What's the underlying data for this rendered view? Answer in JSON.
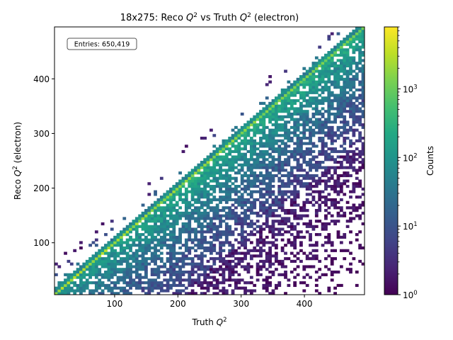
{
  "chart_data": {
    "type": "heatmap",
    "title_prefix": "18x275: Reco ",
    "title_q": "Q",
    "title_mid": " vs Truth ",
    "title_suffix": " (electron)",
    "title_sup": "2",
    "xlabel_prefix": "Truth ",
    "xlabel_q": "Q",
    "xlabel_sup": "2",
    "ylabel_prefix": "Reco ",
    "ylabel_q": "Q",
    "ylabel_sup": "2",
    "ylabel_suffix": " (electron)",
    "xlim": [
      5,
      495
    ],
    "ylim": [
      5,
      495
    ],
    "xticks": [
      100,
      200,
      300,
      400
    ],
    "yticks": [
      100,
      200,
      300,
      400
    ],
    "bins": 100,
    "entries_label": "Entries: 650,419",
    "colorbar": {
      "label": "Counts",
      "scale": "log",
      "range": [
        1,
        8000
      ],
      "ticks": [
        {
          "value": 1,
          "base": "10",
          "exp": "0"
        },
        {
          "value": 10,
          "base": "10",
          "exp": "1"
        },
        {
          "value": 100,
          "base": "10",
          "exp": "2"
        },
        {
          "value": 1000,
          "base": "10",
          "exp": "3"
        }
      ],
      "colormap": "viridis"
    },
    "density_description": {
      "diagonal_peak_counts": 3000,
      "diagonal_width": 4,
      "lower_triangle_typical": 20,
      "upper_triangle_typical": 1
    }
  }
}
